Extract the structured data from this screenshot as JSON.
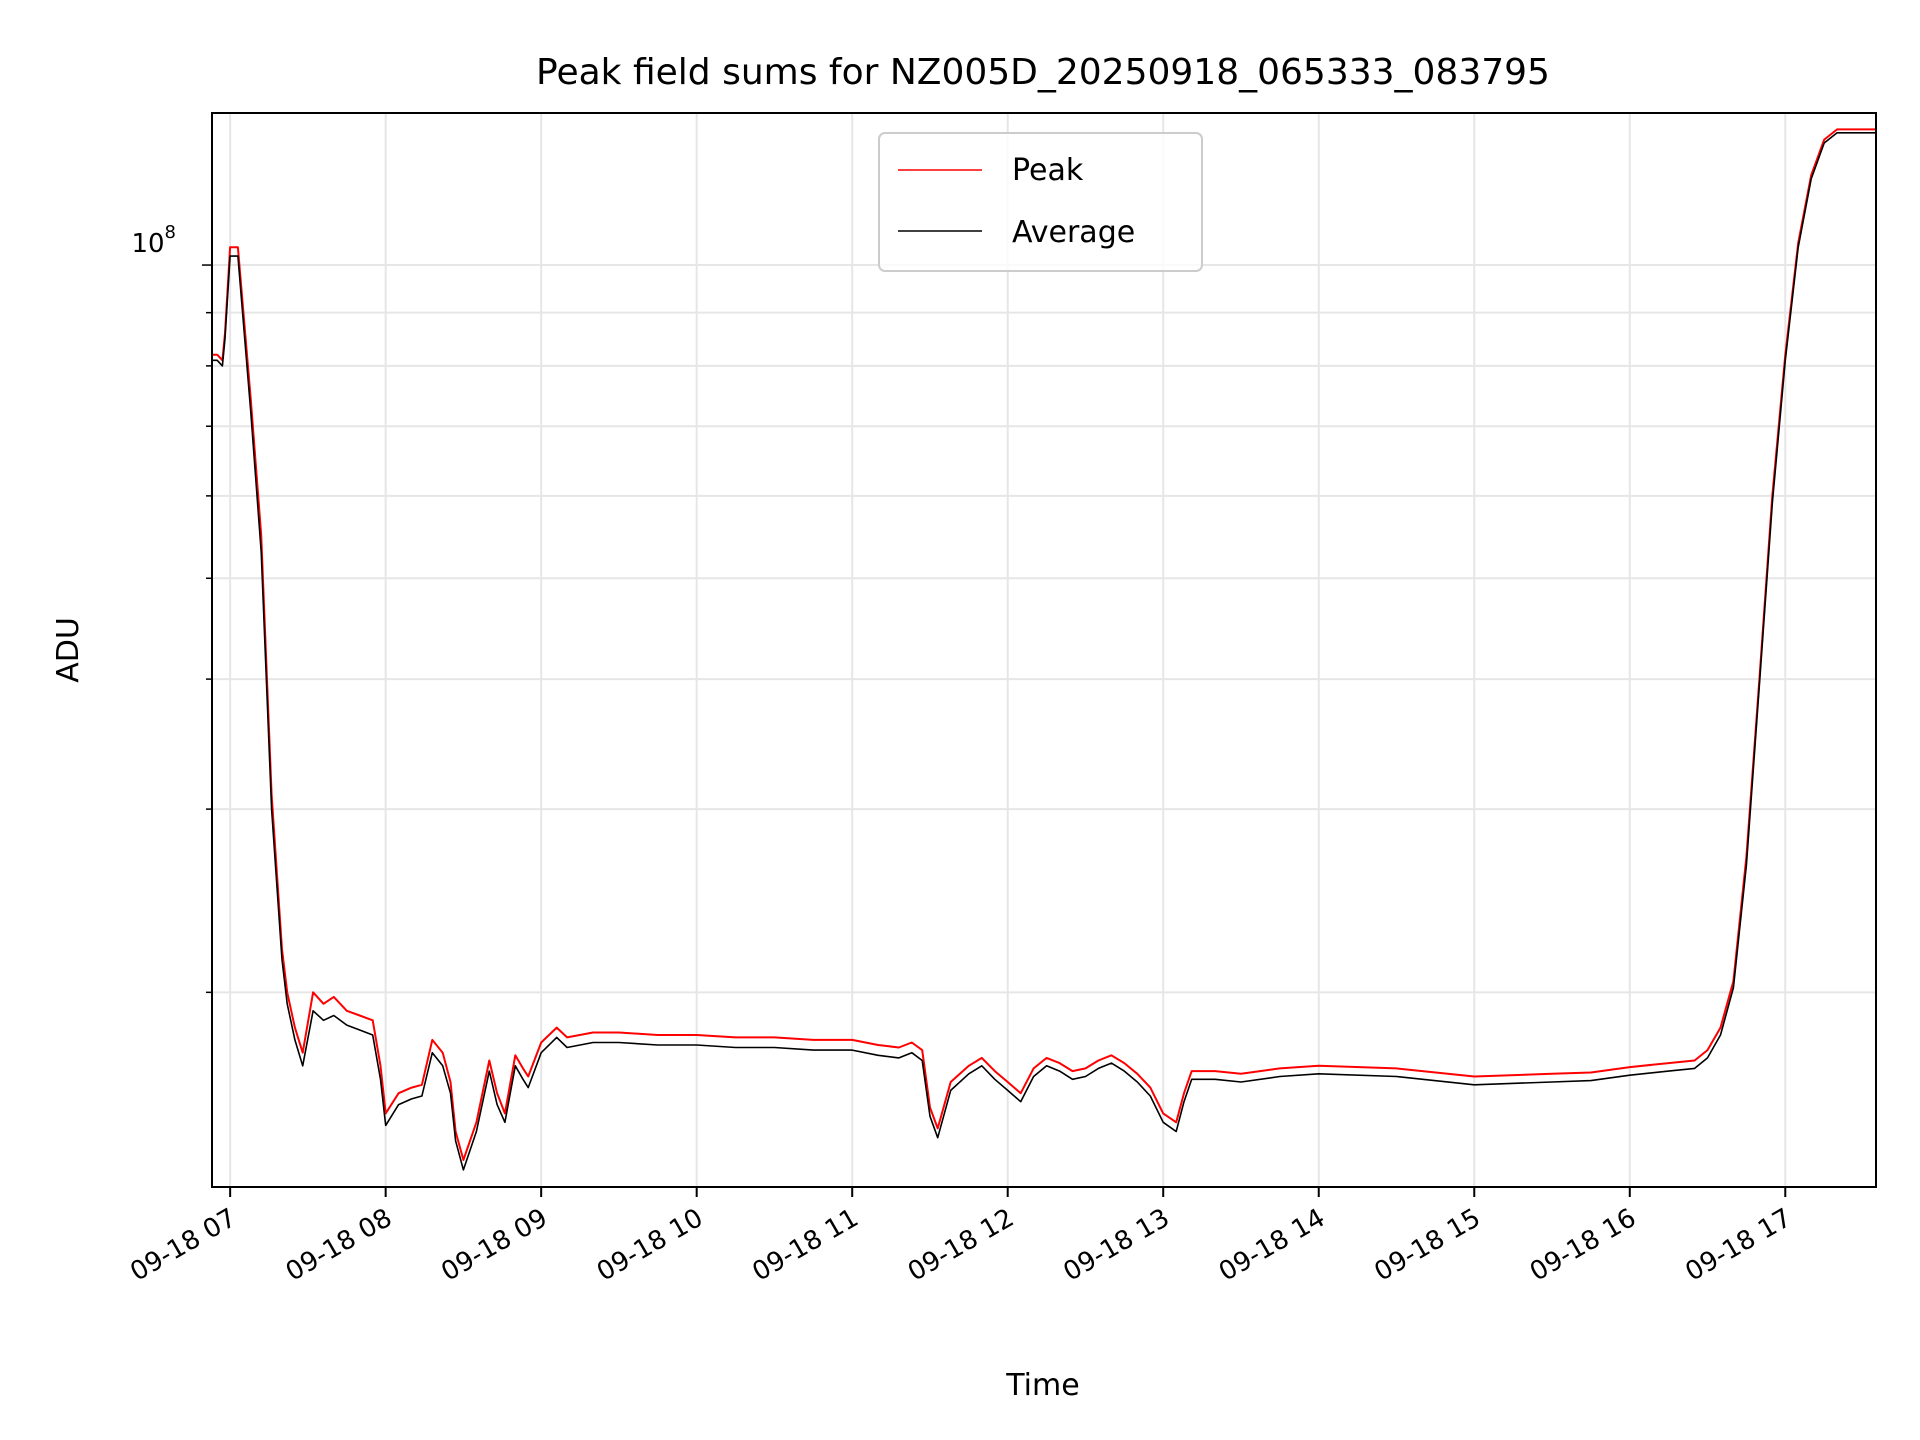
{
  "chart_data": {
    "type": "line",
    "title": "Peak field sums for NZ005D_20250918_065333_083795",
    "xlabel": "Time",
    "ylabel": "ADU",
    "y_scale": "log",
    "y_major_tick_label": "10",
    "y_major_tick_exponent": "8",
    "y_major_tick_value": 100000000,
    "ylim": [
      13000000,
      140000000
    ],
    "xlim": [
      "2025-09-18 06:53",
      "2025-09-18 17:35"
    ],
    "x_tick_labels": [
      "09-18 07",
      "09-18 08",
      "09-18 09",
      "09-18 10",
      "09-18 11",
      "09-18 12",
      "09-18 13",
      "09-18 14",
      "09-18 15",
      "09-18 16",
      "09-18 17"
    ],
    "grid": true,
    "legend_position": "upper center",
    "series": [
      {
        "name": "Peak",
        "color": "#ff0000",
        "x": [
          "2025-09-18 06:53",
          "2025-09-18 06:55",
          "2025-09-18 06:57",
          "2025-09-18 06:58",
          "2025-09-18 07:00",
          "2025-09-18 07:03",
          "2025-09-18 07:08",
          "2025-09-18 07:12",
          "2025-09-18 07:16",
          "2025-09-18 07:20",
          "2025-09-18 07:22",
          "2025-09-18 07:25",
          "2025-09-18 07:28",
          "2025-09-18 07:32",
          "2025-09-18 07:36",
          "2025-09-18 07:40",
          "2025-09-18 07:45",
          "2025-09-18 07:50",
          "2025-09-18 07:55",
          "2025-09-18 07:58",
          "2025-09-18 08:00",
          "2025-09-18 08:05",
          "2025-09-18 08:10",
          "2025-09-18 08:14",
          "2025-09-18 08:18",
          "2025-09-18 08:22",
          "2025-09-18 08:25",
          "2025-09-18 08:27",
          "2025-09-18 08:30",
          "2025-09-18 08:35",
          "2025-09-18 08:40",
          "2025-09-18 08:43",
          "2025-09-18 08:46",
          "2025-09-18 08:50",
          "2025-09-18 08:53",
          "2025-09-18 08:55",
          "2025-09-18 09:00",
          "2025-09-18 09:06",
          "2025-09-18 09:10",
          "2025-09-18 09:20",
          "2025-09-18 09:30",
          "2025-09-18 09:45",
          "2025-09-18 10:00",
          "2025-09-18 10:15",
          "2025-09-18 10:30",
          "2025-09-18 10:45",
          "2025-09-18 11:00",
          "2025-09-18 11:10",
          "2025-09-18 11:18",
          "2025-09-18 11:23",
          "2025-09-18 11:27",
          "2025-09-18 11:30",
          "2025-09-18 11:33",
          "2025-09-18 11:38",
          "2025-09-18 11:45",
          "2025-09-18 11:50",
          "2025-09-18 11:55",
          "2025-09-18 12:00",
          "2025-09-18 12:05",
          "2025-09-18 12:10",
          "2025-09-18 12:15",
          "2025-09-18 12:20",
          "2025-09-18 12:25",
          "2025-09-18 12:30",
          "2025-09-18 12:35",
          "2025-09-18 12:40",
          "2025-09-18 12:45",
          "2025-09-18 12:50",
          "2025-09-18 12:55",
          "2025-09-18 13:00",
          "2025-09-18 13:05",
          "2025-09-18 13:08",
          "2025-09-18 13:11",
          "2025-09-18 13:15",
          "2025-09-18 13:20",
          "2025-09-18 13:30",
          "2025-09-18 13:45",
          "2025-09-18 14:00",
          "2025-09-18 14:30",
          "2025-09-18 15:00",
          "2025-09-18 15:30",
          "2025-09-18 15:45",
          "2025-09-18 16:00",
          "2025-09-18 16:15",
          "2025-09-18 16:25",
          "2025-09-18 16:30",
          "2025-09-18 16:35",
          "2025-09-18 16:40",
          "2025-09-18 16:45",
          "2025-09-18 16:50",
          "2025-09-18 16:55",
          "2025-09-18 17:00",
          "2025-09-18 17:05",
          "2025-09-18 17:10",
          "2025-09-18 17:15",
          "2025-09-18 17:20",
          "2025-09-18 17:25",
          "2025-09-18 17:28",
          "2025-09-18 17:30",
          "2025-09-18 17:35"
        ],
        "y": [
          82000000,
          82000000,
          81000000,
          86000000,
          104000000,
          104000000,
          74000000,
          55000000,
          31000000,
          22000000,
          20000000,
          18500000,
          17500000,
          20000000,
          19500000,
          19800000,
          19200000,
          19000000,
          18800000,
          17000000,
          15300000,
          16000000,
          16200000,
          16300000,
          18000000,
          17500000,
          16400000,
          14700000,
          13800000,
          15000000,
          17200000,
          16000000,
          15300000,
          17400000,
          16900000,
          16600000,
          17900000,
          18500000,
          18100000,
          18300000,
          18300000,
          18200000,
          18200000,
          18100000,
          18100000,
          18000000,
          18000000,
          17800000,
          17700000,
          17900000,
          17600000,
          15500000,
          14800000,
          16400000,
          17000000,
          17300000,
          16800000,
          16400000,
          16000000,
          16900000,
          17300000,
          17100000,
          16800000,
          16900000,
          17200000,
          17400000,
          17100000,
          16700000,
          16200000,
          15300000,
          15000000,
          16000000,
          16800000,
          16800000,
          16800000,
          16700000,
          16900000,
          17000000,
          16900000,
          16600000,
          16700000,
          16750000,
          16950000,
          17100000,
          17200000,
          17600000,
          18500000,
          20500000,
          27000000,
          40000000,
          60000000,
          82000000,
          105000000,
          122000000,
          132000000,
          135000000,
          135000000,
          135000000,
          135000000,
          135000000
        ]
      },
      {
        "name": "Average",
        "color": "#000000",
        "x": [
          "2025-09-18 06:53",
          "2025-09-18 06:55",
          "2025-09-18 06:57",
          "2025-09-18 06:58",
          "2025-09-18 07:00",
          "2025-09-18 07:03",
          "2025-09-18 07:08",
          "2025-09-18 07:12",
          "2025-09-18 07:16",
          "2025-09-18 07:20",
          "2025-09-18 07:22",
          "2025-09-18 07:25",
          "2025-09-18 07:28",
          "2025-09-18 07:32",
          "2025-09-18 07:36",
          "2025-09-18 07:40",
          "2025-09-18 07:45",
          "2025-09-18 07:50",
          "2025-09-18 07:55",
          "2025-09-18 07:58",
          "2025-09-18 08:00",
          "2025-09-18 08:05",
          "2025-09-18 08:10",
          "2025-09-18 08:14",
          "2025-09-18 08:18",
          "2025-09-18 08:22",
          "2025-09-18 08:25",
          "2025-09-18 08:27",
          "2025-09-18 08:30",
          "2025-09-18 08:35",
          "2025-09-18 08:40",
          "2025-09-18 08:43",
          "2025-09-18 08:46",
          "2025-09-18 08:50",
          "2025-09-18 08:53",
          "2025-09-18 08:55",
          "2025-09-18 09:00",
          "2025-09-18 09:06",
          "2025-09-18 09:10",
          "2025-09-18 09:20",
          "2025-09-18 09:30",
          "2025-09-18 09:45",
          "2025-09-18 10:00",
          "2025-09-18 10:15",
          "2025-09-18 10:30",
          "2025-09-18 10:45",
          "2025-09-18 11:00",
          "2025-09-18 11:10",
          "2025-09-18 11:18",
          "2025-09-18 11:23",
          "2025-09-18 11:27",
          "2025-09-18 11:30",
          "2025-09-18 11:33",
          "2025-09-18 11:38",
          "2025-09-18 11:45",
          "2025-09-18 11:50",
          "2025-09-18 11:55",
          "2025-09-18 12:00",
          "2025-09-18 12:05",
          "2025-09-18 12:10",
          "2025-09-18 12:15",
          "2025-09-18 12:20",
          "2025-09-18 12:25",
          "2025-09-18 12:30",
          "2025-09-18 12:35",
          "2025-09-18 12:40",
          "2025-09-18 12:45",
          "2025-09-18 12:50",
          "2025-09-18 12:55",
          "2025-09-18 13:00",
          "2025-09-18 13:05",
          "2025-09-18 13:08",
          "2025-09-18 13:11",
          "2025-09-18 13:15",
          "2025-09-18 13:20",
          "2025-09-18 13:30",
          "2025-09-18 13:45",
          "2025-09-18 14:00",
          "2025-09-18 14:30",
          "2025-09-18 15:00",
          "2025-09-18 15:30",
          "2025-09-18 15:45",
          "2025-09-18 16:00",
          "2025-09-18 16:15",
          "2025-09-18 16:25",
          "2025-09-18 16:30",
          "2025-09-18 16:35",
          "2025-09-18 16:40",
          "2025-09-18 16:45",
          "2025-09-18 16:50",
          "2025-09-18 16:55",
          "2025-09-18 17:00",
          "2025-09-18 17:05",
          "2025-09-18 17:10",
          "2025-09-18 17:15",
          "2025-09-18 17:20",
          "2025-09-18 17:25",
          "2025-09-18 17:28",
          "2025-09-18 17:30",
          "2025-09-18 17:35"
        ],
        "y": [
          81000000,
          81000000,
          80000000,
          85000000,
          102000000,
          102000000,
          72000000,
          53000000,
          30000000,
          21500000,
          19500000,
          18000000,
          17000000,
          19200000,
          18800000,
          19000000,
          18600000,
          18400000,
          18200000,
          16500000,
          14900000,
          15600000,
          15800000,
          15900000,
          17500000,
          17000000,
          16000000,
          14400000,
          13500000,
          14700000,
          16800000,
          15600000,
          15000000,
          17000000,
          16500000,
          16200000,
          17500000,
          18100000,
          17700000,
          17900000,
          17900000,
          17800000,
          17800000,
          17700000,
          17700000,
          17600000,
          17600000,
          17400000,
          17300000,
          17500000,
          17200000,
          15200000,
          14500000,
          16100000,
          16700000,
          17000000,
          16500000,
          16100000,
          15700000,
          16600000,
          17000000,
          16800000,
          16500000,
          16600000,
          16900000,
          17100000,
          16800000,
          16400000,
          15900000,
          15000000,
          14700000,
          15700000,
          16500000,
          16500000,
          16500000,
          16400000,
          16600000,
          16700000,
          16600000,
          16300000,
          16400000,
          16450000,
          16650000,
          16800000,
          16900000,
          17300000,
          18200000,
          20200000,
          26500000,
          39500000,
          59000000,
          81000000,
          104000000,
          121000000,
          131000000,
          134000000,
          134000000,
          134000000,
          134000000,
          134000000
        ]
      }
    ]
  }
}
